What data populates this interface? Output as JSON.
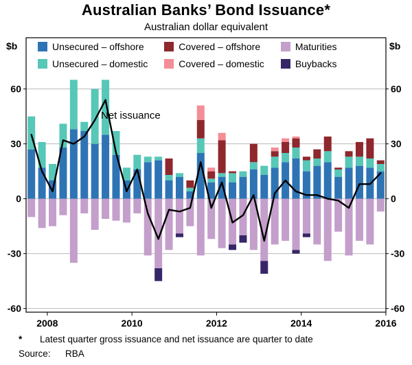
{
  "header": {
    "title": "Australian Banks’ Bond Issuance*",
    "subtitle": "Australian dollar equivalent"
  },
  "axis": {
    "unit_left": "$b",
    "unit_right": "$b"
  },
  "footnotes": {
    "marker": "*",
    "text": "Latest quarter gross issuance and net issuance are quarter to date",
    "source_label": "Source:",
    "source_value": "RBA"
  },
  "chart_data": {
    "type": "bar",
    "subtype": "stacked-quarterly-with-net-line",
    "title": "Australian Banks’ Bond Issuance*",
    "subtitle": "Australian dollar equivalent",
    "ylabel": "$b",
    "ylim": [
      -62,
      88
    ],
    "yticks": [
      60,
      30,
      0,
      -30,
      -60
    ],
    "xticks": [
      2008,
      2010,
      2012,
      2014,
      2016
    ],
    "x_start": 2007.5,
    "x_end": 2016.0,
    "grid": true,
    "legend_position": "top-inside",
    "categories": [
      "2007Q3",
      "2007Q4",
      "2008Q1",
      "2008Q2",
      "2008Q3",
      "2008Q4",
      "2009Q1",
      "2009Q2",
      "2009Q3",
      "2009Q4",
      "2010Q1",
      "2010Q2",
      "2010Q3",
      "2010Q4",
      "2011Q1",
      "2011Q2",
      "2011Q3",
      "2011Q4",
      "2012Q1",
      "2012Q2",
      "2012Q3",
      "2012Q4",
      "2013Q1",
      "2013Q2",
      "2013Q3",
      "2013Q4",
      "2014Q1",
      "2014Q2",
      "2014Q3",
      "2014Q4",
      "2015Q1",
      "2015Q2",
      "2015Q3",
      "2015Q4"
    ],
    "series": [
      {
        "name": "Unsecured – offshore",
        "color": "#2e74b5",
        "stack": "positive",
        "values": [
          27,
          17,
          10,
          28,
          38,
          37,
          30,
          35,
          24,
          10,
          16,
          20,
          21,
          10,
          12,
          4,
          25,
          9,
          12,
          9,
          12,
          16,
          13,
          17,
          20,
          22,
          15,
          18,
          20,
          12,
          17,
          18,
          17,
          15
        ]
      },
      {
        "name": "Unsecured – domestic",
        "color": "#57c7b8",
        "stack": "positive",
        "values": [
          18,
          14,
          9,
          13,
          27,
          5,
          30,
          30,
          13,
          7,
          8,
          3,
          2,
          3,
          2,
          2,
          8,
          2,
          2,
          5,
          3,
          4,
          5,
          6,
          5,
          6,
          6,
          4,
          6,
          4,
          6,
          5,
          5,
          4
        ]
      },
      {
        "name": "Covered – offshore",
        "color": "#8e282d",
        "stack": "positive",
        "values": [
          0,
          0,
          0,
          0,
          0,
          0,
          0,
          0,
          0,
          0,
          0,
          0,
          0,
          9,
          0,
          4,
          10,
          4,
          18,
          1,
          0,
          10,
          0,
          3,
          6,
          5,
          2,
          5,
          8,
          1,
          3,
          8,
          11,
          2
        ]
      },
      {
        "name": "Covered – domestic",
        "color": "#f58d96",
        "stack": "positive",
        "values": [
          0,
          0,
          0,
          0,
          0,
          0,
          0,
          0,
          0,
          0,
          0,
          0,
          0,
          0,
          0,
          0,
          8,
          2,
          4,
          0,
          0,
          0,
          0,
          2,
          2,
          1,
          0,
          0,
          0,
          0,
          0,
          0,
          0,
          0
        ]
      },
      {
        "name": "Maturities",
        "color": "#c49fcb",
        "stack": "negative",
        "values": [
          -10,
          -16,
          -15,
          -9,
          -35,
          -8,
          -17,
          -11,
          -12,
          -13,
          -8,
          -31,
          -38,
          -28,
          -19,
          -15,
          -31,
          -22,
          -27,
          -25,
          -20,
          -28,
          -34,
          -25,
          -23,
          -28,
          -19,
          -25,
          -34,
          -18,
          -31,
          -23,
          -25,
          -7
        ]
      },
      {
        "name": "Buybacks",
        "color": "#372667",
        "stack": "negative",
        "values": [
          0,
          0,
          0,
          0,
          0,
          0,
          0,
          0,
          0,
          0,
          0,
          0,
          -7,
          0,
          -2,
          0,
          0,
          0,
          0,
          -3,
          -4,
          0,
          -7,
          0,
          0,
          -2,
          -2,
          0,
          0,
          0,
          0,
          0,
          0,
          0
        ]
      }
    ],
    "line_series": {
      "name": "Net issuance",
      "color": "#000000",
      "values": [
        35,
        15,
        4,
        32,
        30,
        34,
        43,
        54,
        25,
        4,
        16,
        -8,
        -22,
        -6,
        -7,
        -5,
        20,
        -5,
        9,
        -13,
        -9,
        2,
        -23,
        3,
        10,
        4,
        2,
        2,
        0,
        -1,
        -5,
        8,
        8,
        14
      ]
    }
  }
}
